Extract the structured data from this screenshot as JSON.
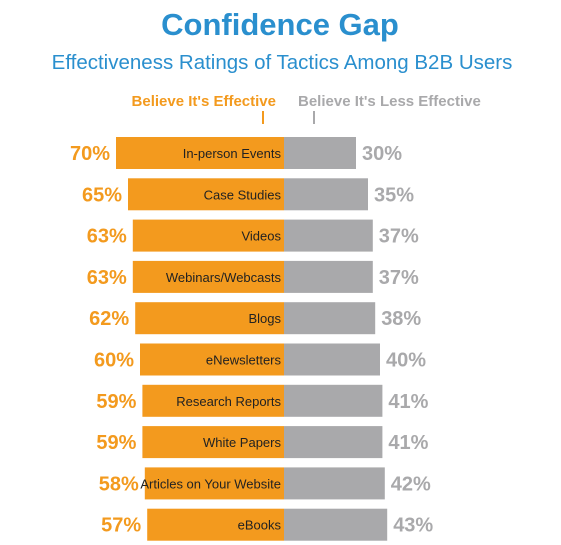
{
  "colors": {
    "title": "#2a8fce",
    "effective": "#f39a1e",
    "less_effective": "#a9a9ab",
    "category_text": "#222222"
  },
  "chart_data": {
    "type": "bar",
    "title": "Confidence Gap",
    "subtitle": "Effectiveness Ratings of Tactics Among B2B Users",
    "categories": [
      "In-person Events",
      "Case Studies",
      "Videos",
      "Webinars/Webcasts",
      "Blogs",
      "eNewsletters",
      "Research Reports",
      "White Papers",
      "Articles on Your Website",
      "eBooks"
    ],
    "series": [
      {
        "name": "Believe It's Effective",
        "values": [
          70,
          65,
          63,
          63,
          62,
          60,
          59,
          59,
          58,
          57
        ]
      },
      {
        "name": "Believe It's Less Effective",
        "values": [
          30,
          35,
          37,
          37,
          38,
          40,
          41,
          41,
          42,
          43
        ]
      }
    ],
    "value_suffix": "%",
    "legend_position": "top",
    "grid": false
  }
}
